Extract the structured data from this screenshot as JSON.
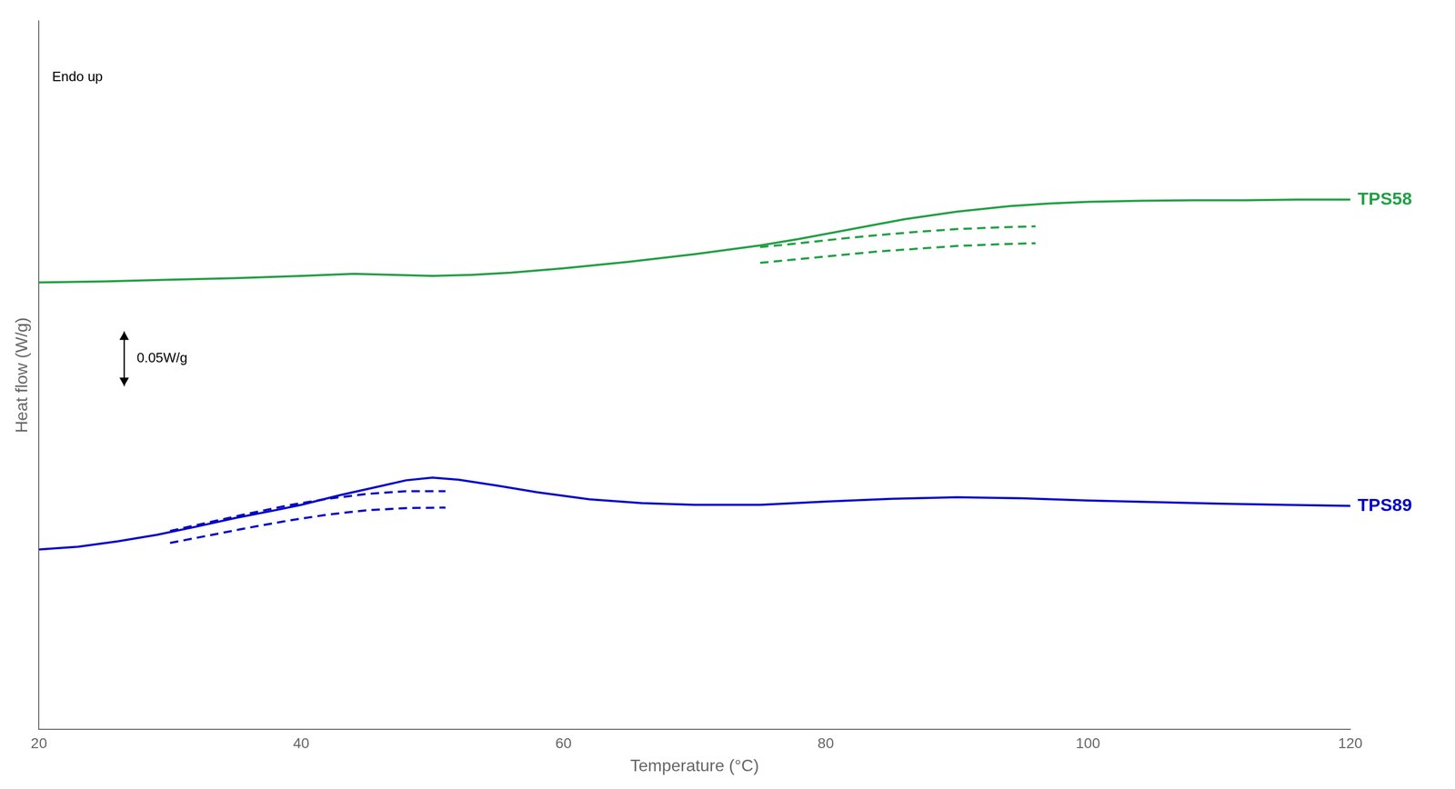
{
  "chart_data": {
    "type": "line",
    "xlabel": "Temperature (°C)",
    "ylabel": "Heat flow (W/g)",
    "xlim": [
      20,
      120
    ],
    "ylim": [
      -0.55,
      0.75
    ],
    "xticks": [
      20,
      40,
      60,
      80,
      100,
      120
    ],
    "grid": false,
    "tick_labels": "x",
    "series": [
      {
        "name": "TPS58",
        "color": "#22a045",
        "line_style": "solid",
        "x": [
          20,
          25,
          30,
          35,
          40,
          44,
          47,
          50,
          53,
          56,
          60,
          65,
          70,
          75,
          78,
          82,
          86,
          90,
          94,
          97,
          100,
          104,
          108,
          112,
          116,
          120
        ],
        "values": [
          0.27,
          0.272,
          0.275,
          0.278,
          0.282,
          0.286,
          0.284,
          0.282,
          0.284,
          0.288,
          0.296,
          0.308,
          0.322,
          0.338,
          0.35,
          0.368,
          0.386,
          0.4,
          0.41,
          0.415,
          0.418,
          0.42,
          0.421,
          0.421,
          0.422,
          0.422
        ]
      },
      {
        "color": "#22a045",
        "line_style": "dashed",
        "x": [
          75,
          78,
          81,
          84,
          87,
          90,
          93,
          96
        ],
        "values": [
          0.335,
          0.342,
          0.35,
          0.357,
          0.363,
          0.368,
          0.371,
          0.373
        ]
      },
      {
        "color": "#22a045",
        "line_style": "dashed",
        "x": [
          75,
          78,
          81,
          84,
          87,
          90,
          93,
          96
        ],
        "values": [
          0.306,
          0.313,
          0.32,
          0.327,
          0.332,
          0.337,
          0.34,
          0.342
        ]
      },
      {
        "name": "TPS89",
        "color": "#0000cc",
        "line_style": "solid",
        "x": [
          20,
          23,
          26,
          29,
          32,
          35,
          38,
          40,
          43,
          46,
          48,
          50,
          52,
          55,
          58,
          62,
          66,
          70,
          75,
          80,
          85,
          90,
          95,
          100,
          105,
          110,
          115,
          120
        ],
        "values": [
          -0.22,
          -0.215,
          -0.205,
          -0.193,
          -0.178,
          -0.162,
          -0.148,
          -0.138,
          -0.12,
          -0.104,
          -0.093,
          -0.088,
          -0.092,
          -0.103,
          -0.115,
          -0.128,
          -0.135,
          -0.138,
          -0.138,
          -0.132,
          -0.127,
          -0.124,
          -0.126,
          -0.13,
          -0.133,
          -0.136,
          -0.138,
          -0.14
        ]
      },
      {
        "color": "#0000cc",
        "line_style": "dashed",
        "x": [
          30,
          33,
          36,
          39,
          42,
          45,
          48,
          51
        ],
        "values": [
          -0.186,
          -0.17,
          -0.154,
          -0.139,
          -0.127,
          -0.118,
          -0.113,
          -0.113
        ]
      },
      {
        "color": "#0000cc",
        "line_style": "dashed",
        "x": [
          30,
          33,
          36,
          39,
          42,
          45,
          48,
          51
        ],
        "values": [
          -0.208,
          -0.194,
          -0.18,
          -0.167,
          -0.156,
          -0.148,
          -0.144,
          -0.143
        ]
      }
    ],
    "annotations": [
      {
        "text": "Endo up"
      },
      {
        "text": "0.05W/g",
        "arrow": [
          0.08,
          0.18
        ]
      }
    ]
  }
}
